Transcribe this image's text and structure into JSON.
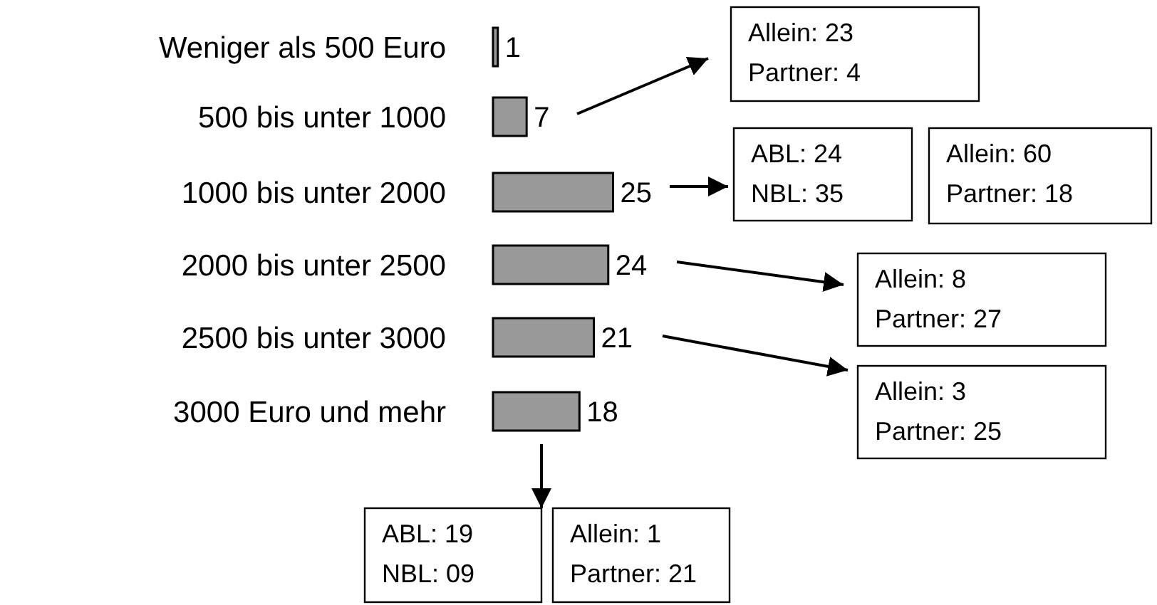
{
  "chart_data": {
    "type": "bar",
    "orientation": "horizontal",
    "relative": false,
    "data_labels": true,
    "categories": [
      "Weniger als 500 Euro",
      "500 bis unter 1000",
      "1000 bis unter 2000",
      "2000 bis unter 2500",
      "2500 bis unter 3000",
      "3000 Euro und mehr"
    ],
    "values": [
      1,
      7,
      25,
      24,
      21,
      18
    ],
    "color": "#999999",
    "annotations": [
      "Allein: 23\nPartner: 4",
      "ABL: 24\nNBL: 35",
      "Allein: 60\nPartner: 18",
      "Allein: 8\nPartner: 27",
      "Allein: 3\nPartner: 25",
      "ABL: 19\nNBL: 09",
      "Allein: 1\nPartner: 21"
    ]
  }
}
